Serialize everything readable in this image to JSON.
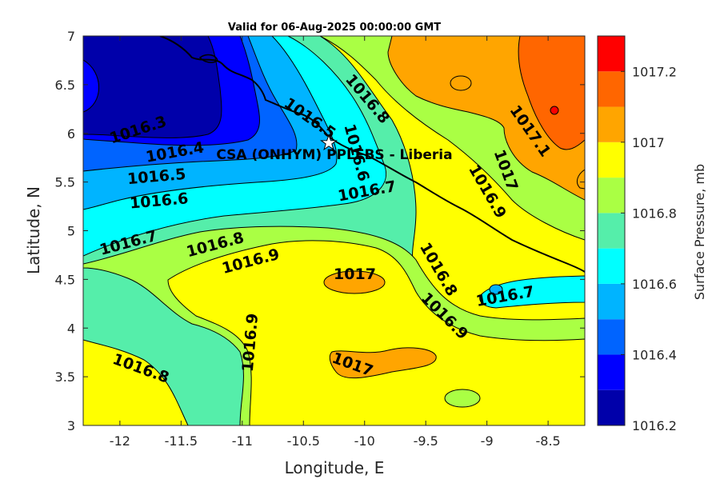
{
  "map": {
    "title": "Valid for 06-Aug-2025 00:00:00 GMT",
    "xlabel": "Longitude, E",
    "ylabel": "Latitude, N",
    "station_label": "CSA (ONHYM) PPLEBS  - Liberia",
    "x_ticks": [
      "-12",
      "-11.5",
      "-11",
      "-10.5",
      "-10",
      "-9.5",
      "-9",
      "-8.5"
    ],
    "y_ticks": [
      "3",
      "3.5",
      "4",
      "4.5",
      "5",
      "5.5",
      "6",
      "6.5",
      "7"
    ],
    "xlim": [
      -12.3,
      -8.2
    ],
    "ylim": [
      3,
      7
    ],
    "contour_labels": [
      {
        "text": "1016.3",
        "lon": -11.85,
        "lat": 6.03,
        "rot": -18
      },
      {
        "text": "1016.4",
        "lon": -11.55,
        "lat": 5.8,
        "rot": -10
      },
      {
        "text": "1016.5",
        "lon": -11.7,
        "lat": 5.55,
        "rot": -5
      },
      {
        "text": "1016.6",
        "lon": -11.68,
        "lat": 5.3,
        "rot": -5
      },
      {
        "text": "1016.7",
        "lon": -11.93,
        "lat": 4.87,
        "rot": -15
      },
      {
        "text": "1016.8",
        "lon": -11.22,
        "lat": 4.85,
        "rot": -15
      },
      {
        "text": "1016.9",
        "lon": -10.93,
        "lat": 4.68,
        "rot": -15
      },
      {
        "text": "1016.5",
        "lon": -10.45,
        "lat": 6.15,
        "rot": 35
      },
      {
        "text": "1016.6",
        "lon": -10.07,
        "lat": 5.8,
        "rot": 75
      },
      {
        "text": "1016.8",
        "lon": -9.98,
        "lat": 6.35,
        "rot": 50
      },
      {
        "text": "1016.7",
        "lon": -9.98,
        "lat": 5.4,
        "rot": -10
      },
      {
        "text": "1016.8",
        "lon": -9.4,
        "lat": 4.6,
        "rot": 60
      },
      {
        "text": "1016.9",
        "lon": -9.35,
        "lat": 4.12,
        "rot": 45
      },
      {
        "text": "1017",
        "lon": -10.08,
        "lat": 4.55,
        "rot": 0
      },
      {
        "text": "1017",
        "lon": -10.1,
        "lat": 3.62,
        "rot": 20
      },
      {
        "text": "1016.9",
        "lon": -10.93,
        "lat": 3.85,
        "rot": -85
      },
      {
        "text": "1016.8",
        "lon": -11.83,
        "lat": 3.58,
        "rot": 20
      },
      {
        "text": "1016.7",
        "lon": -8.85,
        "lat": 4.32,
        "rot": -10
      },
      {
        "text": "1017.1",
        "lon": -8.65,
        "lat": 6.02,
        "rot": 55
      },
      {
        "text": "1017",
        "lon": -8.85,
        "lat": 5.62,
        "rot": 70
      },
      {
        "text": "1016.9",
        "lon": -9.0,
        "lat": 5.4,
        "rot": 60
      }
    ]
  },
  "colorbar": {
    "label": "Surface Pressure, mb",
    "tick_labels": [
      "1016.2",
      "1016.4",
      "1016.6",
      "1016.8",
      "1017",
      "1017.2"
    ],
    "levels": [
      1016.2,
      1016.3,
      1016.4,
      1016.5,
      1016.6,
      1016.7,
      1016.8,
      1016.9,
      1017.0,
      1017.1,
      1017.2,
      1017.3
    ],
    "colors": [
      "#0000aa",
      "#0000ff",
      "#0064ff",
      "#00b4ff",
      "#00ffff",
      "#55eeaa",
      "#aaff44",
      "#ffff00",
      "#ffa500",
      "#ff6600",
      "#ff0000",
      "#b40000"
    ]
  }
}
